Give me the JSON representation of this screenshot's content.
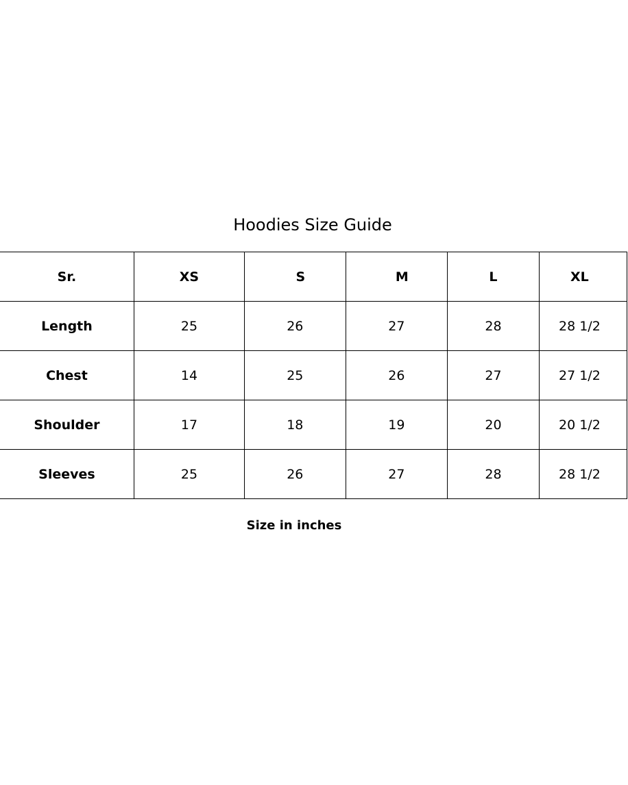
{
  "title": "Hoodies Size Guide",
  "table": {
    "headers": [
      "Sr.",
      "XS",
      "S",
      "M",
      "L",
      "XL"
    ],
    "rows": [
      [
        "Length",
        "25",
        "26",
        "27",
        "28",
        "28 1/2"
      ],
      [
        "Chest",
        "14",
        "25",
        "26",
        "27",
        "27 1/2"
      ],
      [
        "Shoulder",
        "17",
        "18",
        "19",
        "20",
        "20 1/2"
      ],
      [
        "Sleeves",
        "25",
        "26",
        "27",
        "28",
        "28 1/2"
      ]
    ]
  },
  "footer": "Size in inches"
}
